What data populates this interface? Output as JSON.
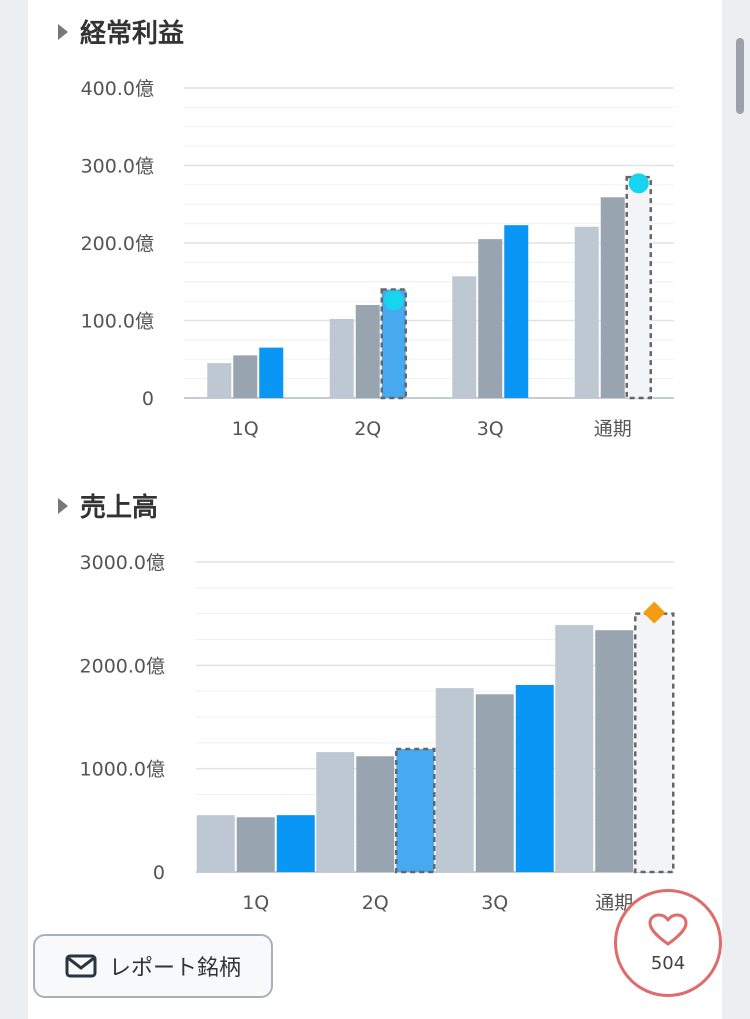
{
  "sections": [
    {
      "title": "経常利益"
    },
    {
      "title": "売上高"
    }
  ],
  "colors": {
    "series1": "#bdc8d2",
    "series2": "#98a5b0",
    "series3": "#0a96f5",
    "series3_forecast": "#47a9f0",
    "marker_circle": "#17d4ef",
    "marker_diamond": "#f39c12",
    "forecast_box": "#f3f4f6",
    "forecast_border": "#666666"
  },
  "chart_data": [
    {
      "type": "bar",
      "title": "経常利益",
      "categories": [
        "1Q",
        "2Q",
        "3Q",
        "通期"
      ],
      "y_tick_labels": [
        "0",
        "100.0億",
        "200.0億",
        "300.0億",
        "400.0億"
      ],
      "ylim": [
        0,
        400
      ],
      "series": [
        {
          "values": [
            45,
            102,
            157,
            221
          ]
        },
        {
          "values": [
            55,
            120,
            205,
            259
          ]
        },
        {
          "values": [
            65,
            140,
            223,
            null
          ]
        }
      ],
      "forecast_box": [
        {
          "category": "2Q",
          "value": 140
        },
        {
          "category": "通期",
          "value": 285
        }
      ],
      "markers": [
        {
          "category": "2Q",
          "value": 126,
          "shape": "circle"
        },
        {
          "category": "通期",
          "value": 277,
          "shape": "circle"
        }
      ],
      "grid": true
    },
    {
      "type": "bar",
      "title": "売上高",
      "categories": [
        "1Q",
        "2Q",
        "3Q",
        "通期"
      ],
      "y_tick_labels": [
        "0",
        "1000.0億",
        "2000.0億",
        "3000.0億"
      ],
      "ylim": [
        0,
        3000
      ],
      "series": [
        {
          "values": [
            550,
            1160,
            1780,
            2390
          ]
        },
        {
          "values": [
            530,
            1120,
            1720,
            2340
          ]
        },
        {
          "values": [
            550,
            1190,
            1810,
            null
          ]
        }
      ],
      "forecast_box": [
        {
          "category": "2Q",
          "value": 1190
        },
        {
          "category": "通期",
          "value": 2500
        }
      ],
      "markers": [
        {
          "category": "通期",
          "value": 2510,
          "shape": "diamond"
        }
      ],
      "grid": true
    }
  ],
  "report_button": {
    "label": "レポート銘柄"
  },
  "like_button": {
    "count": "504"
  }
}
